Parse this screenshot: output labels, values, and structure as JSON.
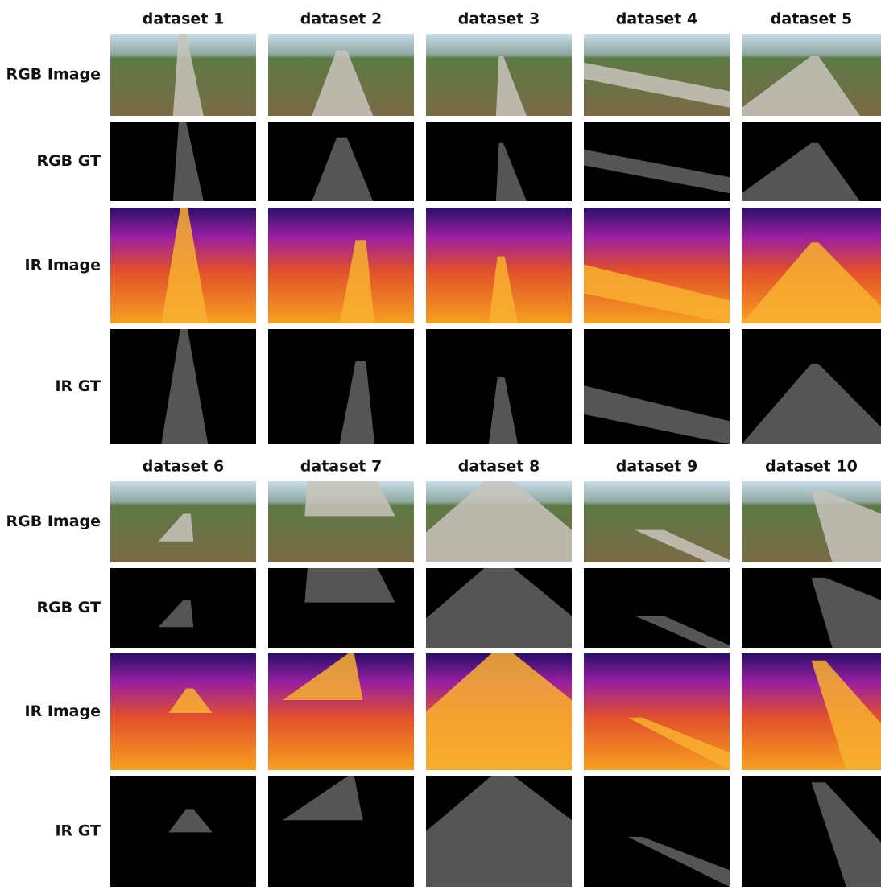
{
  "blocks": [
    {
      "datasets": [
        "dataset 1",
        "dataset 2",
        "dataset 3",
        "dataset 4",
        "dataset 5"
      ],
      "row_labels": [
        "RGB Image",
        "RGB GT",
        "IR Image",
        "IR GT"
      ]
    },
    {
      "datasets": [
        "dataset 6",
        "dataset 7",
        "dataset 8",
        "dataset 9",
        "dataset 10"
      ],
      "row_labels": [
        "RGB Image",
        "RGB GT",
        "IR Image",
        "IR GT"
      ]
    }
  ]
}
